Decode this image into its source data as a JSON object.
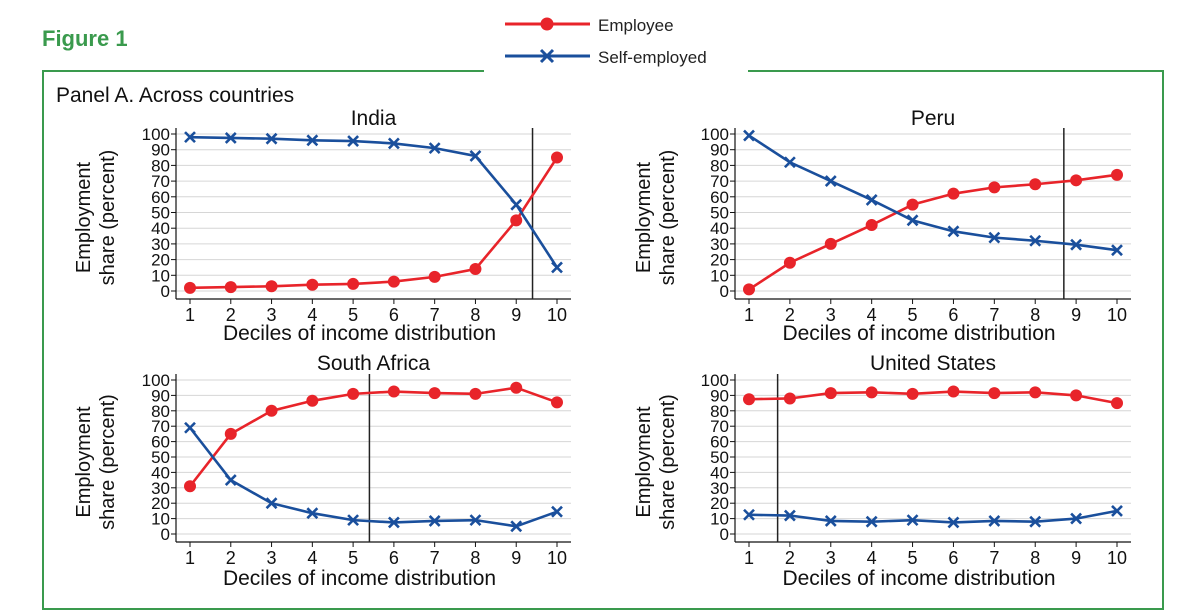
{
  "figure_title": "Figure 1",
  "panel_label": "Panel A. Across countries",
  "legend": {
    "employee": "Employee",
    "self_employed": "Self-employed"
  },
  "colors": {
    "accent": "#3a9a4d",
    "employee": "#e8242a",
    "self_employed": "#1a4f9c",
    "grid": "#d6d6d6"
  },
  "chart_data": [
    {
      "type": "line",
      "title": "India",
      "xlabel": "Deciles of income distribution",
      "ylabel_line1": "Employment",
      "ylabel_line2": "share (percent)",
      "x": [
        1,
        2,
        3,
        4,
        5,
        6,
        7,
        8,
        9,
        10
      ],
      "ylim": [
        0,
        100
      ],
      "yticks": [
        0,
        10,
        20,
        30,
        40,
        50,
        60,
        70,
        80,
        90,
        100
      ],
      "vline": 9.4,
      "series": [
        {
          "name": "Employee",
          "values": [
            2,
            2.5,
            3,
            4,
            4.5,
            6,
            9,
            14,
            45,
            85
          ]
        },
        {
          "name": "Self-employed",
          "values": [
            98,
            97.5,
            97,
            96,
            95.5,
            94,
            91,
            86,
            55,
            15
          ]
        }
      ]
    },
    {
      "type": "line",
      "title": "Peru",
      "xlabel": "Deciles of income distribution",
      "ylabel_line1": "Employment",
      "ylabel_line2": "share (percent)",
      "x": [
        1,
        2,
        3,
        4,
        5,
        6,
        7,
        8,
        9,
        10
      ],
      "ylim": [
        0,
        100
      ],
      "yticks": [
        0,
        10,
        20,
        30,
        40,
        50,
        60,
        70,
        80,
        90,
        100
      ],
      "vline": 8.7,
      "series": [
        {
          "name": "Employee",
          "values": [
            1,
            18,
            30,
            42,
            55,
            62,
            66,
            68,
            70.5,
            74
          ]
        },
        {
          "name": "Self-employed",
          "values": [
            99,
            82,
            70,
            58,
            45,
            38,
            34,
            32,
            29.5,
            26
          ]
        }
      ]
    },
    {
      "type": "line",
      "title": "South Africa",
      "xlabel": "Deciles of income distribution",
      "ylabel_line1": "Employment",
      "ylabel_line2": "share (percent)",
      "x": [
        1,
        2,
        3,
        4,
        5,
        6,
        7,
        8,
        9,
        10
      ],
      "ylim": [
        0,
        100
      ],
      "yticks": [
        0,
        10,
        20,
        30,
        40,
        50,
        60,
        70,
        80,
        90,
        100
      ],
      "vline": 5.4,
      "series": [
        {
          "name": "Employee",
          "values": [
            31,
            65,
            80,
            86.5,
            91,
            92.5,
            91.5,
            91,
            95,
            85.5
          ]
        },
        {
          "name": "Self-employed",
          "values": [
            69,
            35,
            20,
            13.5,
            9,
            7.5,
            8.5,
            9,
            5,
            14.5
          ]
        }
      ]
    },
    {
      "type": "line",
      "title": "United States",
      "xlabel": "Deciles of income distribution",
      "ylabel_line1": "Employment",
      "ylabel_line2": "share (percent)",
      "x": [
        1,
        2,
        3,
        4,
        5,
        6,
        7,
        8,
        9,
        10
      ],
      "ylim": [
        0,
        100
      ],
      "yticks": [
        0,
        10,
        20,
        30,
        40,
        50,
        60,
        70,
        80,
        90,
        100
      ],
      "vline": 1.7,
      "series": [
        {
          "name": "Employee",
          "values": [
            87.5,
            88,
            91.5,
            92,
            91,
            92.5,
            91.5,
            92,
            90,
            85
          ]
        },
        {
          "name": "Self-employed",
          "values": [
            12.5,
            12,
            8.5,
            8,
            9,
            7.5,
            8.5,
            8,
            10,
            15
          ]
        }
      ]
    }
  ]
}
